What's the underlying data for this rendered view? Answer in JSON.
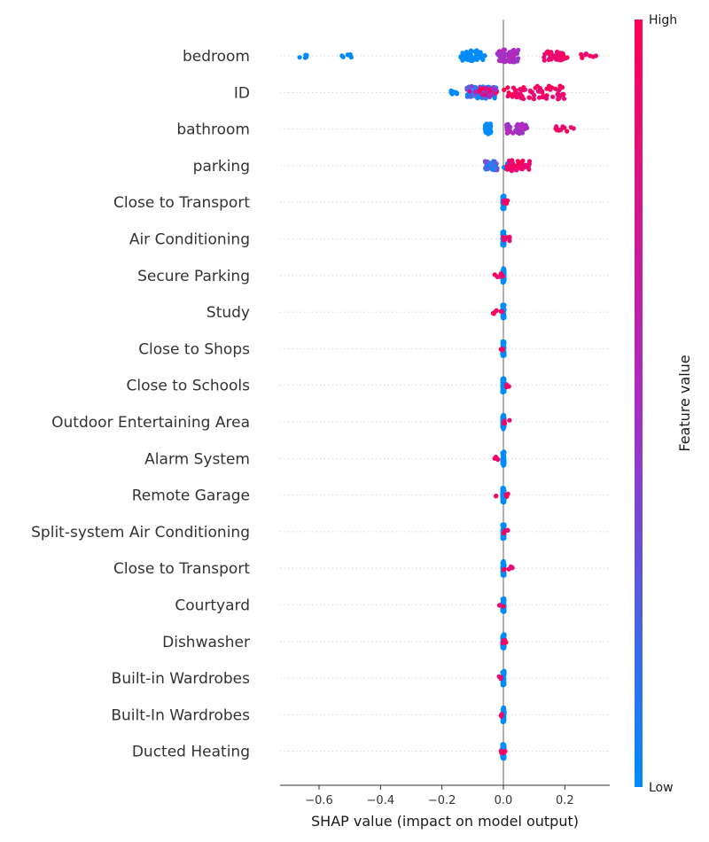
{
  "chart_data": {
    "type": "scatter",
    "subtype": "shap-beeswarm",
    "xlabel": "SHAP value (impact on model output)",
    "xlim": [
      -0.72,
      0.34
    ],
    "xticks": [
      -0.6,
      -0.4,
      -0.2,
      0.0,
      0.2
    ],
    "xtick_labels": [
      "−0.6",
      "−0.4",
      "−0.2",
      "0.0",
      "0.2"
    ],
    "colorbar": {
      "label": "Feature value",
      "high_label": "High",
      "low_label": "Low",
      "low_color": "#008bfb",
      "mid_color": "#a82cc4",
      "high_color": "#ff0052"
    },
    "grid": "dotted horizontal lines per feature",
    "series": [
      {
        "name": "bedroom",
        "groups": [
          {
            "range": [
              -0.67,
              -0.63
            ],
            "n": 6,
            "color": "low"
          },
          {
            "range": [
              -0.53,
              -0.49
            ],
            "n": 6,
            "color": "low"
          },
          {
            "range": [
              -0.14,
              -0.06
            ],
            "n": 45,
            "color": "low"
          },
          {
            "range": [
              -0.02,
              0.05
            ],
            "n": 60,
            "color": "mid"
          },
          {
            "range": [
              0.13,
              0.21
            ],
            "n": 35,
            "color": "high"
          },
          {
            "range": [
              0.25,
              0.31
            ],
            "n": 7,
            "color": "high"
          }
        ]
      },
      {
        "name": "ID",
        "groups": [
          {
            "range": [
              -0.21,
              -0.15
            ],
            "n": 8,
            "color": "low"
          },
          {
            "range": [
              -0.12,
              -0.02
            ],
            "n": 60,
            "color": "lowmid"
          },
          {
            "range": [
              -0.11,
              -0.02
            ],
            "n": 25,
            "color": "mixhigh"
          },
          {
            "range": [
              0.0,
              0.2
            ],
            "n": 70,
            "color": "high"
          }
        ]
      },
      {
        "name": "bathroom",
        "groups": [
          {
            "range": [
              -0.06,
              -0.04
            ],
            "n": 45,
            "color": "low"
          },
          {
            "range": [
              0.01,
              0.08
            ],
            "n": 40,
            "color": "mid"
          },
          {
            "range": [
              0.16,
              0.23
            ],
            "n": 12,
            "color": "high"
          }
        ]
      },
      {
        "name": "parking",
        "groups": [
          {
            "range": [
              -0.06,
              -0.02
            ],
            "n": 35,
            "color": "lowmid"
          },
          {
            "range": [
              0.0,
              0.03
            ],
            "n": 15,
            "color": "low"
          },
          {
            "range": [
              0.01,
              0.09
            ],
            "n": 45,
            "color": "high"
          }
        ]
      },
      {
        "name": "Close to Transport",
        "groups": [
          {
            "range": [
              -0.003,
              0.003
            ],
            "n": 60,
            "color": "low"
          },
          {
            "range": [
              0.0,
              0.025
            ],
            "n": 6,
            "color": "high"
          }
        ]
      },
      {
        "name": "Air Conditioning",
        "groups": [
          {
            "range": [
              -0.003,
              0.003
            ],
            "n": 60,
            "color": "low"
          },
          {
            "range": [
              -0.005,
              0.025
            ],
            "n": 6,
            "color": "high"
          }
        ]
      },
      {
        "name": "Secure Parking",
        "groups": [
          {
            "range": [
              -0.003,
              0.003
            ],
            "n": 60,
            "color": "low"
          },
          {
            "range": [
              -0.03,
              0.0
            ],
            "n": 6,
            "color": "high"
          }
        ]
      },
      {
        "name": "Study",
        "groups": [
          {
            "range": [
              -0.003,
              0.003
            ],
            "n": 60,
            "color": "low"
          },
          {
            "range": [
              -0.035,
              0.0
            ],
            "n": 7,
            "color": "high"
          }
        ]
      },
      {
        "name": "Close to Shops",
        "groups": [
          {
            "range": [
              -0.003,
              0.003
            ],
            "n": 60,
            "color": "low"
          },
          {
            "range": [
              -0.01,
              0.0
            ],
            "n": 4,
            "color": "high"
          }
        ]
      },
      {
        "name": "Close to Schools",
        "groups": [
          {
            "range": [
              -0.003,
              0.003
            ],
            "n": 60,
            "color": "low"
          },
          {
            "range": [
              0.0,
              0.02
            ],
            "n": 5,
            "color": "high"
          }
        ]
      },
      {
        "name": "Outdoor Entertaining Area",
        "groups": [
          {
            "range": [
              -0.003,
              0.003
            ],
            "n": 60,
            "color": "low"
          },
          {
            "range": [
              0.0,
              0.02
            ],
            "n": 6,
            "color": "high"
          }
        ]
      },
      {
        "name": "Alarm System",
        "groups": [
          {
            "range": [
              -0.003,
              0.003
            ],
            "n": 60,
            "color": "low"
          },
          {
            "range": [
              -0.03,
              0.0
            ],
            "n": 5,
            "color": "high"
          }
        ]
      },
      {
        "name": "Remote Garage",
        "groups": [
          {
            "range": [
              -0.003,
              0.003
            ],
            "n": 60,
            "color": "low"
          },
          {
            "range": [
              -0.025,
              0.02
            ],
            "n": 5,
            "color": "high"
          }
        ]
      },
      {
        "name": "Split-system Air Conditioning",
        "groups": [
          {
            "range": [
              -0.003,
              0.003
            ],
            "n": 60,
            "color": "low"
          },
          {
            "range": [
              0.0,
              0.015
            ],
            "n": 4,
            "color": "high"
          }
        ]
      },
      {
        "name": "Close to Transport",
        "groups": [
          {
            "range": [
              -0.003,
              0.003
            ],
            "n": 60,
            "color": "low"
          },
          {
            "range": [
              0.0,
              0.03
            ],
            "n": 7,
            "color": "high"
          }
        ]
      },
      {
        "name": "Courtyard",
        "groups": [
          {
            "range": [
              -0.003,
              0.003
            ],
            "n": 60,
            "color": "low"
          },
          {
            "range": [
              -0.015,
              0.0
            ],
            "n": 3,
            "color": "high"
          }
        ]
      },
      {
        "name": "Dishwasher",
        "groups": [
          {
            "range": [
              -0.003,
              0.003
            ],
            "n": 60,
            "color": "low"
          },
          {
            "range": [
              -0.015,
              0.015
            ],
            "n": 4,
            "color": "high"
          }
        ]
      },
      {
        "name": "Built-in Wardrobes",
        "groups": [
          {
            "range": [
              -0.003,
              0.003
            ],
            "n": 60,
            "color": "low"
          },
          {
            "range": [
              -0.015,
              0.0
            ],
            "n": 3,
            "color": "high"
          }
        ]
      },
      {
        "name": "Built-In Wardrobes",
        "groups": [
          {
            "range": [
              -0.003,
              0.003
            ],
            "n": 60,
            "color": "low"
          },
          {
            "range": [
              -0.015,
              0.0
            ],
            "n": 3,
            "color": "high"
          }
        ]
      },
      {
        "name": "Ducted Heating",
        "groups": [
          {
            "range": [
              -0.003,
              0.003
            ],
            "n": 60,
            "color": "low"
          },
          {
            "range": [
              -0.01,
              0.01
            ],
            "n": 5,
            "color": "high"
          }
        ]
      }
    ]
  }
}
